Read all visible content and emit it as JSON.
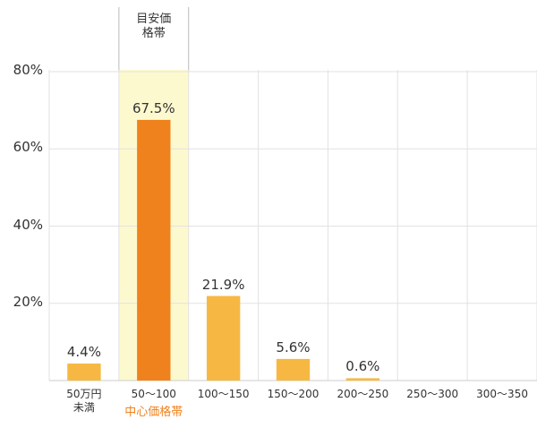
{
  "chart_data": {
    "type": "bar",
    "header_label": "目安価\n格帯",
    "highlight_label": "中心価格帯",
    "highlight_index": 1,
    "categories": [
      "50万円\n未満",
      "50〜100",
      "100〜150",
      "150〜200",
      "200〜250",
      "250〜300",
      "300〜350"
    ],
    "values": [
      4.4,
      67.5,
      21.9,
      5.6,
      0.6,
      null,
      null
    ],
    "value_labels": [
      "4.4%",
      "67.5%",
      "21.9%",
      "5.6%",
      "0.6%",
      null,
      null
    ],
    "colors": [
      "#f7b843",
      "#f0821e",
      "#f7b843",
      "#f7b843",
      "#f7b843",
      "#f7b843",
      "#f7b843"
    ],
    "ylim": [
      0,
      80
    ],
    "yticks": [
      {
        "value": 20,
        "label": "20%"
      },
      {
        "value": 40,
        "label": "40%"
      },
      {
        "value": 60,
        "label": "60%"
      },
      {
        "value": 80,
        "label": "80%"
      }
    ],
    "grid": true
  }
}
